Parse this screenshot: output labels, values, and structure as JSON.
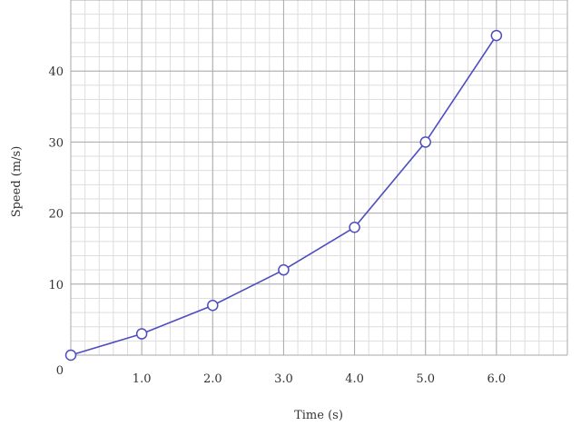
{
  "chart_data": {
    "type": "line",
    "xlabel": "Time (s)",
    "ylabel": "Speed (m/s)",
    "xlim": [
      0,
      7.0
    ],
    "ylim": [
      0,
      50
    ],
    "x_tick_labels": [
      "1.0",
      "2.0",
      "3.0",
      "4.0",
      "5.0",
      "6.0"
    ],
    "x_tick_values": [
      1,
      2,
      3,
      4,
      5,
      6
    ],
    "y_tick_labels": [
      "0",
      "10",
      "20",
      "30",
      "40"
    ],
    "y_tick_values": [
      0,
      10,
      20,
      30,
      40
    ],
    "grid": true,
    "marker": "open-circle",
    "series": [
      {
        "x": [
          0,
          1,
          2,
          3,
          4,
          5,
          6
        ],
        "y": [
          0,
          3,
          7,
          12,
          18,
          30,
          45
        ],
        "color": "#4d4dbf"
      }
    ]
  }
}
